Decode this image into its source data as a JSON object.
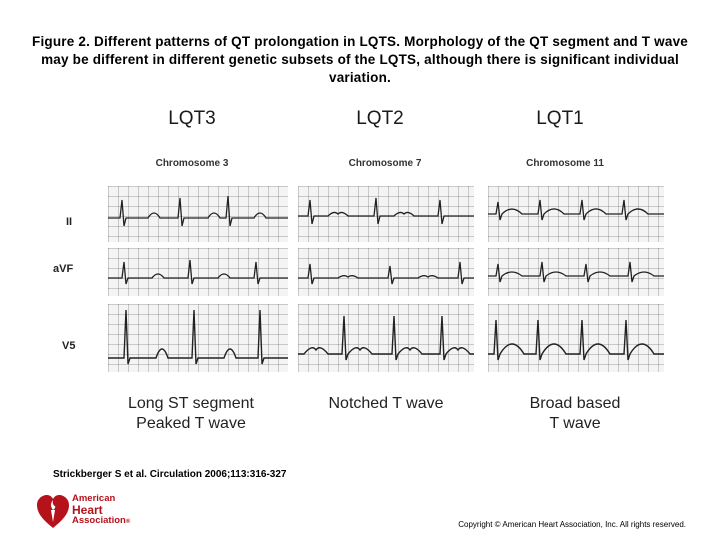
{
  "caption": "Figure 2. Different patterns of QT prolongation in LQTS. Morphology of the QT segment and T wave may be different in different genetic subsets of the LQTS, although there is significant individual variation.",
  "figure": {
    "columns": [
      {
        "title": "LQT3",
        "chromosome": "Chromosome 3",
        "description_line1": "Long ST segment",
        "description_line2": "Peaked T wave"
      },
      {
        "title": "LQT2",
        "chromosome": "Chromosome 7",
        "description_line1": "Notched T wave",
        "description_line2": ""
      },
      {
        "title": "LQT1",
        "chromosome": "Chromosome 11",
        "description_line1": "Broad based",
        "description_line2": "T wave"
      }
    ],
    "leads": [
      "II",
      "aVF",
      "V5"
    ]
  },
  "citation": "Strickberger S et al. Circulation 2006;113:316-327",
  "logo": {
    "line1": "American",
    "line2": "Heart",
    "line3": "Association",
    "mark": "®",
    "icon": "heart-torch-icon",
    "color": "#b5121b"
  },
  "copyright": "Copyright © American Heart Association, Inc. All rights reserved."
}
